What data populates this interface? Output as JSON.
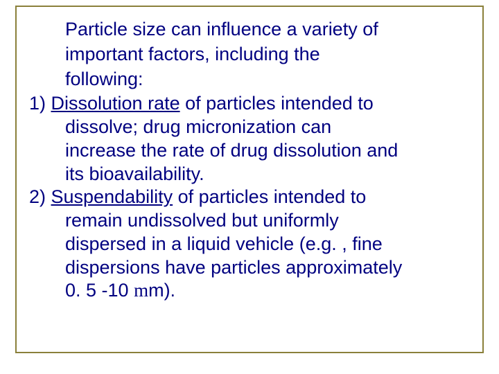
{
  "frame": {
    "border_color": "#8a803a"
  },
  "text": {
    "color": "#000080",
    "intro_l1": "Particle size can influence a variety of",
    "intro_l2": "important factors, including the",
    "intro_l3": "following:",
    "item1_num": "1) ",
    "item1_term": "Dissolution rate",
    "item1_rest_l1": " of particles intended to",
    "item1_l2": "dissolve; drug micronization can",
    "item1_l3": "increase the rate of drug dissolution and",
    "item1_l4": "its bioavailability.",
    "item2_num": "2) ",
    "item2_term": "Suspendability",
    "item2_rest_l1": " of particles intended to",
    "item2_l2": "remain undissolved but uniformly",
    "item2_l3": "dispersed in a liquid vehicle (e.g. , fine",
    "item2_l4": "dispersions have particles approximately",
    "item2_l5a": "0. 5 -10 ",
    "item2_mu": "m",
    "item2_l5b": "m)."
  }
}
